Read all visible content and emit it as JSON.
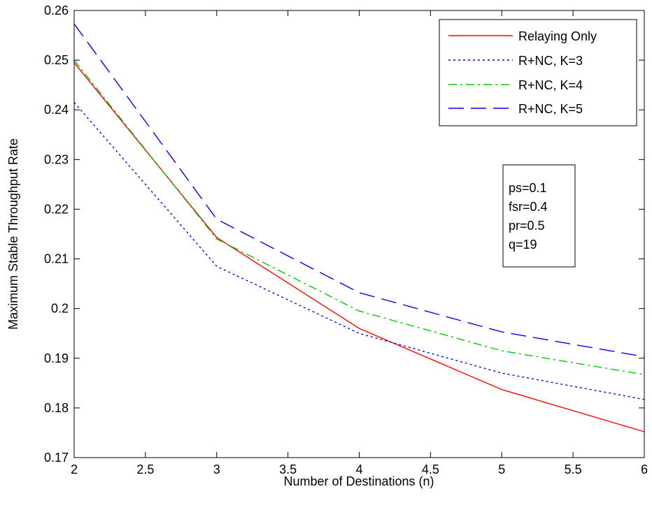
{
  "chart_data": {
    "type": "line",
    "title": "",
    "xlabel": "Number of Destinations (n)",
    "ylabel": "Maximum Stable Throughput Rate",
    "xlim": [
      2,
      6
    ],
    "ylim": [
      0.17,
      0.26
    ],
    "xticks": [
      2,
      2.5,
      3,
      3.5,
      4,
      4.5,
      5,
      5.5,
      6
    ],
    "xtick_labels": [
      "2",
      "2.5",
      "3",
      "3.5",
      "4",
      "4.5",
      "5",
      "5.5",
      "6"
    ],
    "yticks": [
      0.17,
      0.18,
      0.19,
      0.2,
      0.21,
      0.22,
      0.23,
      0.24,
      0.25,
      0.26
    ],
    "ytick_labels": [
      "0.17",
      "0.18",
      "0.19",
      "0.2",
      "0.21",
      "0.22",
      "0.23",
      "0.24",
      "0.25",
      "0.26"
    ],
    "grid": false,
    "legend_position": "top-right",
    "x": [
      2,
      3,
      4,
      5,
      6
    ],
    "series": [
      {
        "name": "Relaying Only",
        "values": [
          0.2495,
          0.2143,
          0.196,
          0.1837,
          0.1752
        ],
        "color": "#ff0000",
        "dash": "solid"
      },
      {
        "name": "R+NC, K=3",
        "values": [
          0.2415,
          0.2085,
          0.195,
          0.187,
          0.1817
        ],
        "color": "#0000ff",
        "dash": "dotted"
      },
      {
        "name": "R+NC, K=4",
        "values": [
          0.25,
          0.214,
          0.1995,
          0.1915,
          0.1867
        ],
        "color": "#00cc00",
        "dash": "dashdot"
      },
      {
        "name": "R+NC, K=5",
        "values": [
          0.2573,
          0.218,
          0.2032,
          0.1953,
          0.1903
        ],
        "color": "#0000ff",
        "dash": "dashed"
      }
    ],
    "annotation": [
      "ps=0.1",
      "fsr=0.4",
      "pr=0.5",
      "q=19"
    ]
  }
}
